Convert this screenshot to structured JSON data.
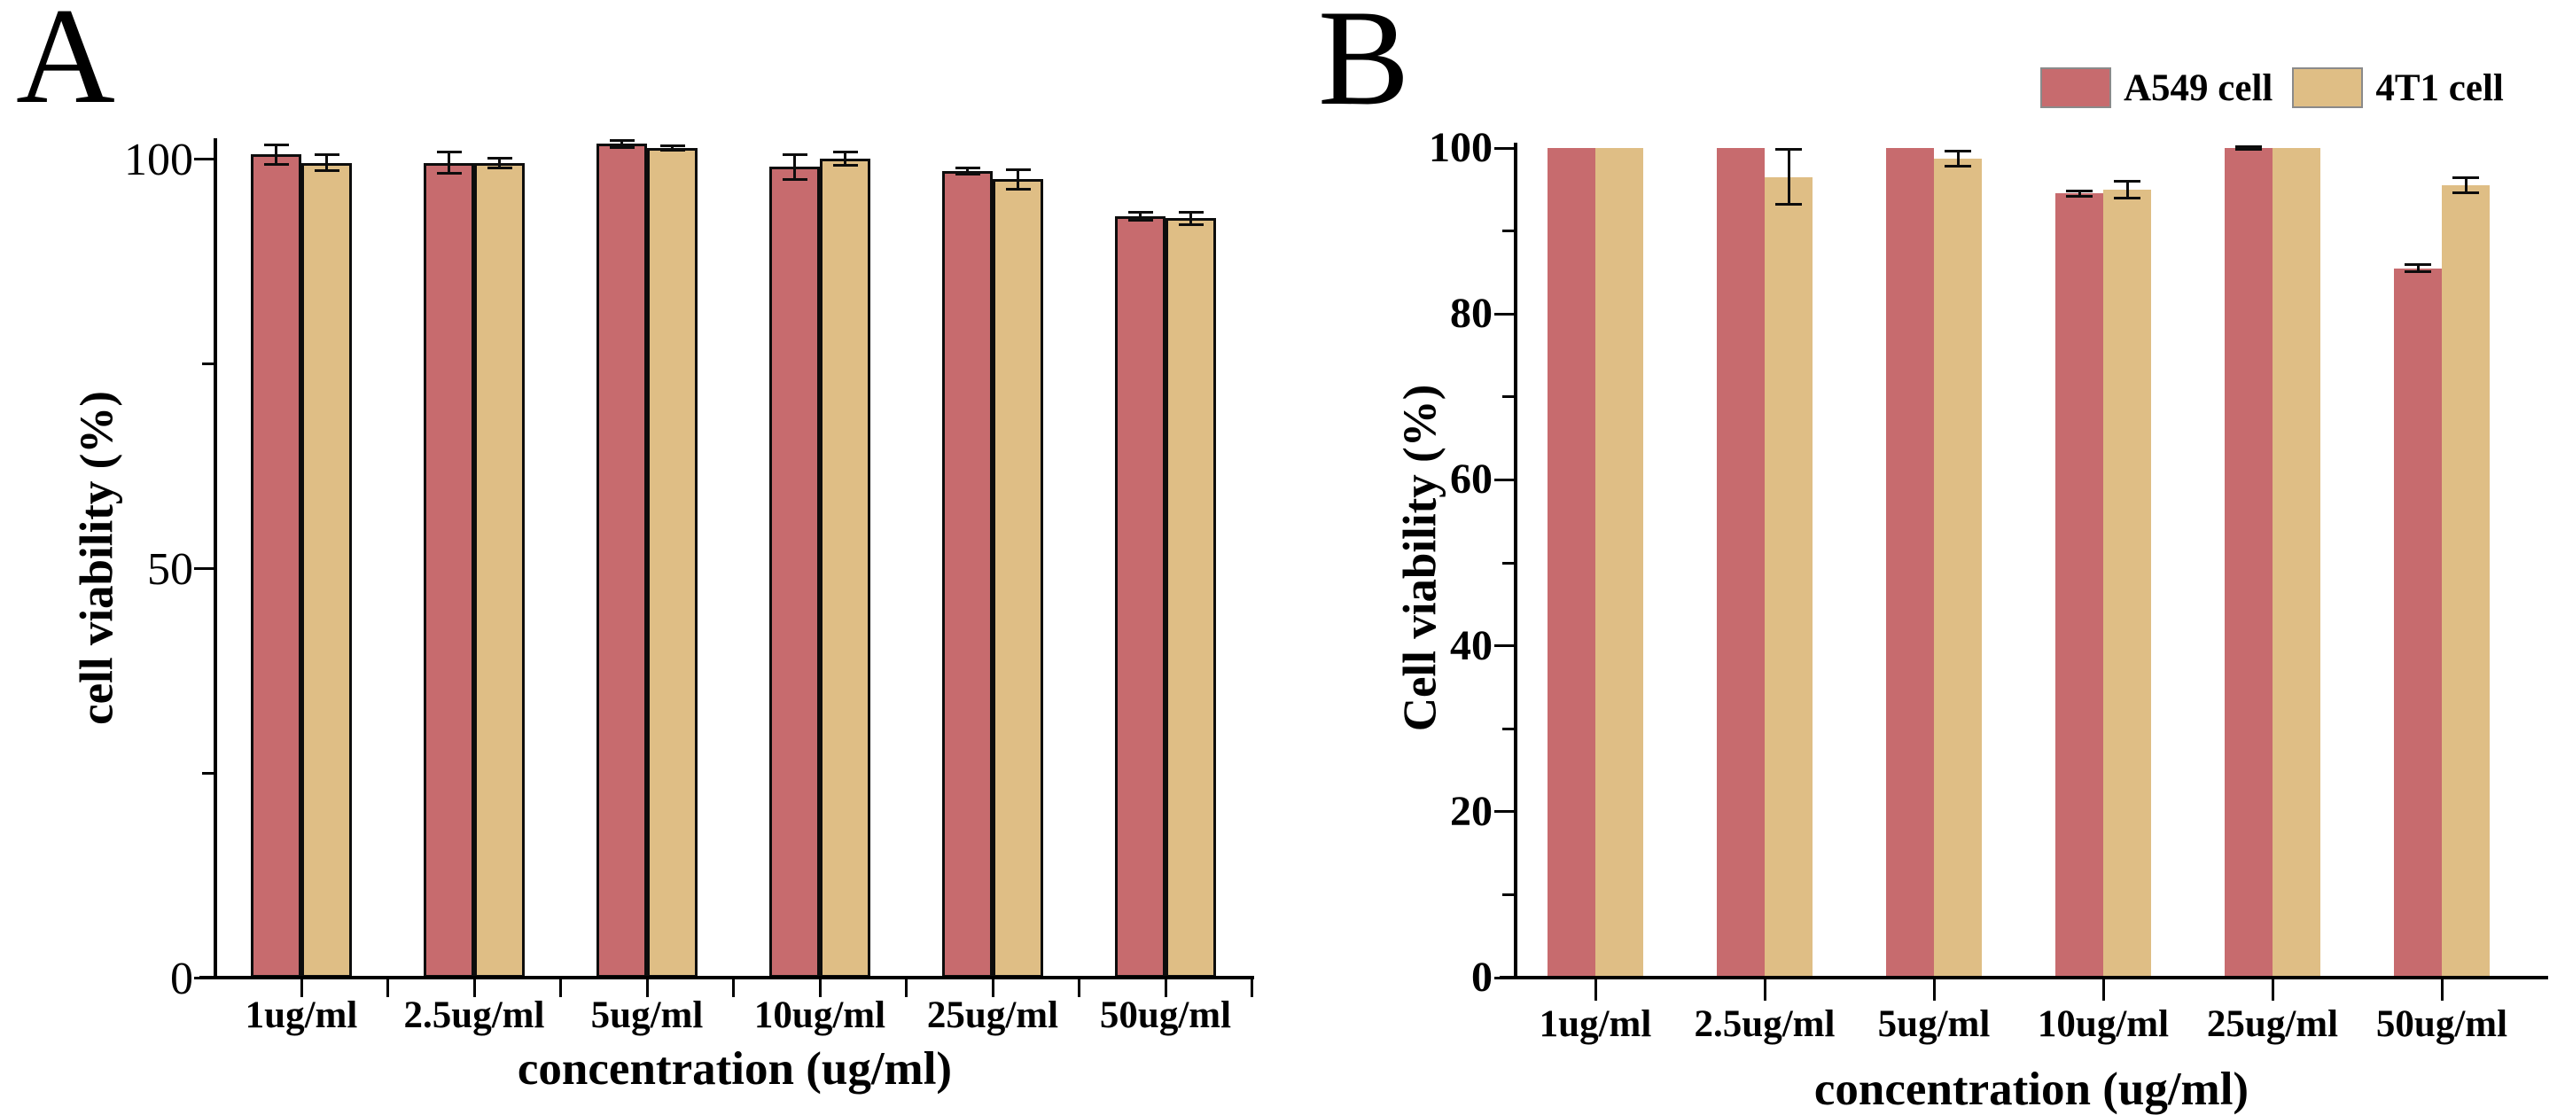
{
  "page": {
    "background": "#ffffff"
  },
  "colors": {
    "a549_bar": "#C76B6E",
    "t1_bar": "#DFBE85",
    "axis": "#000000",
    "bar_outline": "#0d0d0d"
  },
  "legend": {
    "items": [
      {
        "label": "A549 cell",
        "color": "#C76B6E"
      },
      {
        "label": "4T1 cell",
        "color": "#DFBE85"
      }
    ]
  },
  "chart_data": [
    {
      "type": "bar",
      "panel_label": "A",
      "title": "",
      "xlabel": "concentration (ug/ml)",
      "ylabel": "cell viability (%)",
      "categories": [
        "1ug/ml",
        "2.5ug/ml",
        "5ug/ml",
        "10ug/ml",
        "25ug/ml",
        "50ug/ml"
      ],
      "ylim": [
        0,
        102.5
      ],
      "y_ticks_major": [
        0,
        50,
        100
      ],
      "y_ticks_minor": [
        25,
        75
      ],
      "grid": false,
      "legend_position": "none",
      "bar_outline": true,
      "series": [
        {
          "name": "A549 cell",
          "color": "#C76B6E",
          "values": [
            100.5,
            99.5,
            101.8,
            99.0,
            98.5,
            93.0
          ],
          "errors": [
            1.2,
            1.3,
            0.4,
            1.5,
            0.4,
            0.5
          ]
        },
        {
          "name": "4T1 cell",
          "color": "#DFBE85",
          "values": [
            99.5,
            99.5,
            101.3,
            100.0,
            97.5,
            92.7
          ],
          "errors": [
            1.0,
            0.6,
            0.3,
            0.8,
            1.2,
            0.8
          ]
        }
      ]
    },
    {
      "type": "bar",
      "panel_label": "B",
      "title": "",
      "xlabel": "concentration (ug/ml)",
      "ylabel": "Cell viability (%)",
      "categories": [
        "1ug/ml",
        "2.5ug/ml",
        "5ug/ml",
        "10ug/ml",
        "25ug/ml",
        "50ug/ml"
      ],
      "ylim": [
        0,
        100.5
      ],
      "y_ticks_major": [
        0,
        20,
        40,
        60,
        80,
        100
      ],
      "y_ticks_minor": [
        10,
        30,
        50,
        70,
        90
      ],
      "grid": false,
      "legend_position": "top-right",
      "bar_outline": false,
      "series": [
        {
          "name": "A549 cell",
          "color": "#C76B6E",
          "values": [
            100,
            100,
            100,
            94.5,
            100,
            85.5
          ],
          "errors": [
            0,
            0,
            0,
            0.3,
            0.2,
            0.4
          ]
        },
        {
          "name": "4T1 cell",
          "color": "#DFBE85",
          "values": [
            100,
            96.5,
            98.7,
            95.0,
            100,
            95.5
          ],
          "errors": [
            0,
            3.3,
            0.9,
            1.0,
            0,
            0.9
          ]
        }
      ]
    }
  ]
}
